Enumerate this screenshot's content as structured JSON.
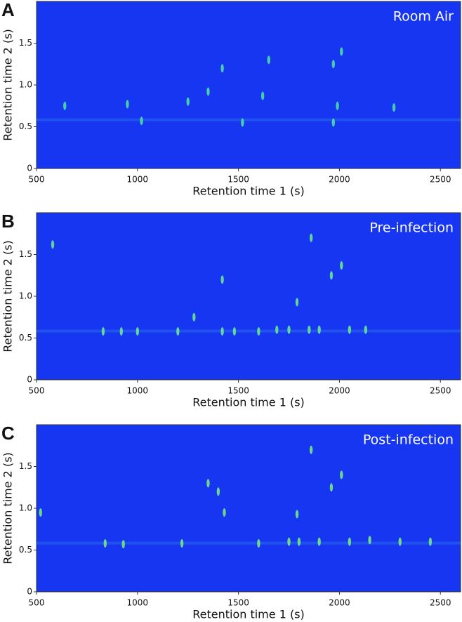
{
  "chart_data": [
    {
      "type": "scatter",
      "panel": "A",
      "title": "Room Air",
      "x_label": "Retention time 1 (s)",
      "y_label": "Retention time 2 (s)",
      "xlim": [
        500,
        2600
      ],
      "ylim": [
        0,
        2
      ],
      "xticks": [
        500,
        1000,
        1500,
        2000,
        2500
      ],
      "yticks": [
        0,
        0.5,
        {
          "value": 1,
          "label": "1.0"
        },
        1.5
      ],
      "background": "#1636f2",
      "color": "#4de8a0",
      "x": [
        1970,
        1650,
        1420,
        1990,
        1970,
        950,
        1020,
        1250,
        2010,
        1620,
        1350,
        640,
        1520,
        2270
      ],
      "values": [
        1.25,
        1.3,
        1.2,
        0.75,
        0.55,
        0.77,
        0.57,
        0.8,
        1.4,
        0.87,
        0.92,
        0.75,
        0.55,
        0.73
      ]
    },
    {
      "type": "scatter",
      "panel": "B",
      "title": "Pre-infection",
      "x_label": "Retention time 1 (s)",
      "y_label": "Retention time 2 (s)",
      "xlim": [
        500,
        2600
      ],
      "ylim": [
        0,
        2
      ],
      "xticks": [
        500,
        1000,
        1500,
        2000,
        2500
      ],
      "yticks": [
        0,
        0.5,
        {
          "value": 1,
          "label": "1.0"
        },
        1.5
      ],
      "background": "#1636f2",
      "color": "#6ef08a",
      "x": [
        1860,
        1420,
        1790,
        1960,
        2010,
        1280,
        580,
        830,
        920,
        1000,
        1200,
        1420,
        1600,
        1750,
        1850,
        1900,
        2050,
        2130,
        1480,
        1690
      ],
      "values": [
        1.7,
        1.2,
        0.93,
        1.25,
        1.37,
        0.75,
        1.62,
        0.58,
        0.58,
        0.58,
        0.58,
        0.58,
        0.58,
        0.6,
        0.6,
        0.6,
        0.6,
        0.6,
        0.58,
        0.6
      ]
    },
    {
      "type": "scatter",
      "panel": "C",
      "title": "Post-infection",
      "x_label": "Retention time 1 (s)",
      "y_label": "Retention time 2 (s)",
      "xlim": [
        500,
        2600
      ],
      "ylim": [
        0,
        2
      ],
      "xticks": [
        500,
        1000,
        1500,
        2000,
        2500
      ],
      "yticks": [
        0,
        0.5,
        {
          "value": 1,
          "label": "1.0"
        },
        1.5
      ],
      "background": "#1636f2",
      "color": "#7af27a",
      "x": [
        1860,
        1400,
        1350,
        1790,
        2010,
        1960,
        520,
        840,
        930,
        1220,
        1600,
        1750,
        1800,
        1900,
        2050,
        2150,
        2300,
        2450,
        1430
      ],
      "values": [
        1.7,
        1.2,
        1.3,
        0.93,
        1.4,
        1.25,
        0.95,
        0.58,
        0.57,
        0.58,
        0.58,
        0.6,
        0.6,
        0.6,
        0.6,
        0.62,
        0.6,
        0.6,
        0.95
      ]
    }
  ]
}
